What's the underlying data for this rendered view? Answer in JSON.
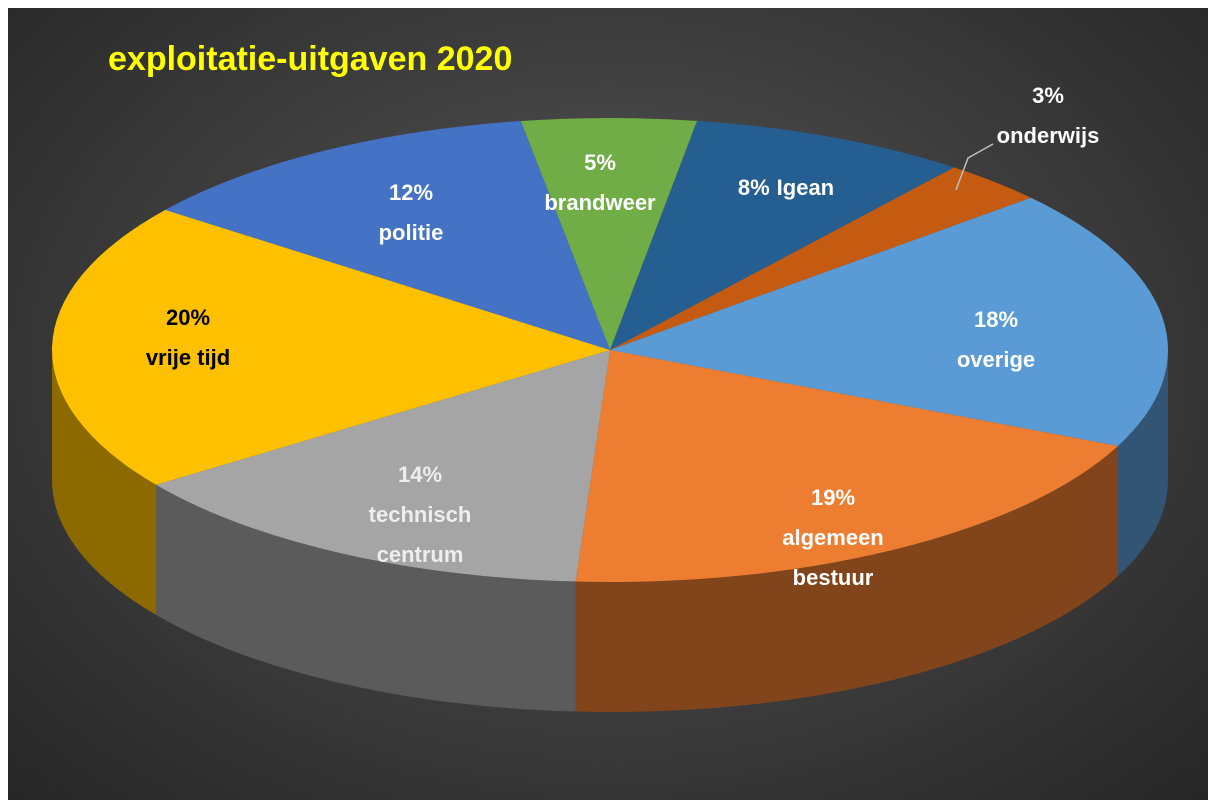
{
  "chart_data": {
    "type": "pie",
    "title": "exploitatie-uitgaven 2020",
    "categories": [
      "brandweer",
      "Igean",
      "onderwijs",
      "overige",
      "algemeen bestuur",
      "technisch centrum",
      "vrije tijd",
      "politie"
    ],
    "values": [
      5,
      8,
      3,
      18,
      19,
      14,
      20,
      12
    ],
    "value_labels": [
      "5%",
      "8%",
      "3%",
      "18%",
      "19%",
      "14%",
      "20%",
      "12%"
    ],
    "colors": [
      "#70ad47",
      "#255e91",
      "#c55a11",
      "#5b9bd5",
      "#ed7d31",
      "#a5a5a5",
      "#ffc000",
      "#4472c4"
    ],
    "label_colors": [
      "#ffffff",
      "#ffffff",
      "#ffffff",
      "#ffffff",
      "#ffffff",
      "#eeeeee",
      "#000000",
      "#ffffff"
    ]
  }
}
